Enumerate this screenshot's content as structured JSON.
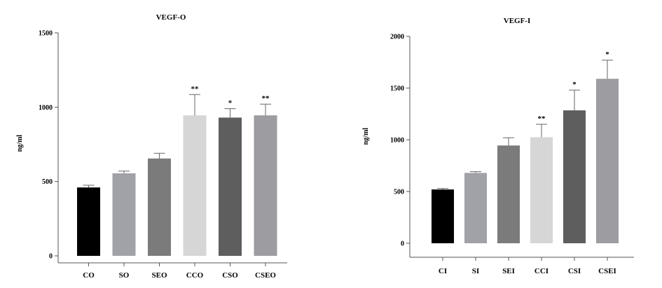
{
  "chart_data": [
    {
      "type": "bar",
      "title": "VEGF-O",
      "xlabel": "",
      "ylabel": "ng/ml",
      "ylim": [
        0,
        1500
      ],
      "yticks": [
        0,
        500,
        1000,
        1500
      ],
      "categories": [
        "CO",
        "SO",
        "SEO",
        "CCO",
        "CSO",
        "CSEO"
      ],
      "values": [
        460,
        555,
        655,
        945,
        930,
        945
      ],
      "errors": [
        15,
        15,
        35,
        140,
        60,
        75
      ],
      "significance": [
        "",
        "",
        "",
        "**",
        "*",
        "**"
      ],
      "colors": [
        "#000000",
        "#a1a1a8",
        "#7b7b7b",
        "#d6d6d6",
        "#5e5e5e",
        "#9c9ca1"
      ]
    },
    {
      "type": "bar",
      "title": "VEGF-I",
      "xlabel": "",
      "ylabel": "ng/ml",
      "ylim": [
        0,
        2000
      ],
      "yticks": [
        0,
        500,
        1000,
        1500,
        2000
      ],
      "categories": [
        "CI",
        "SI",
        "SEI",
        "CCI",
        "CSI",
        "CSEI"
      ],
      "values": [
        520,
        680,
        945,
        1025,
        1285,
        1590
      ],
      "errors": [
        10,
        12,
        75,
        125,
        195,
        180
      ],
      "significance": [
        "",
        "",
        "",
        "**",
        "*",
        "*"
      ],
      "colors": [
        "#000000",
        "#a1a1a8",
        "#7b7b7b",
        "#d6d6d6",
        "#5e5e5e",
        "#9c9ca1"
      ]
    }
  ]
}
